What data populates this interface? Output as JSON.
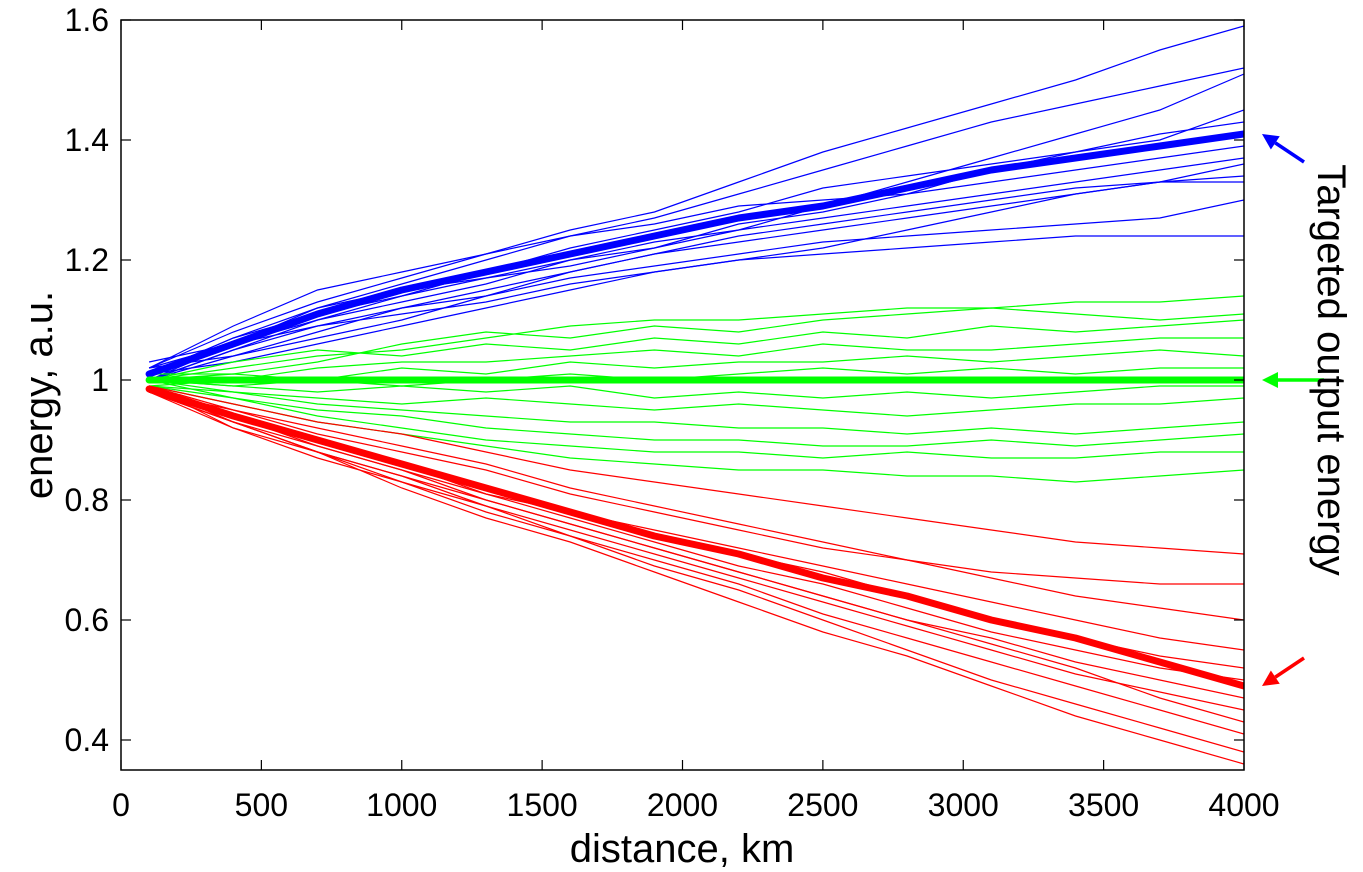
{
  "chart_data": {
    "type": "line",
    "title": "",
    "xlabel": "distance, km",
    "ylabel": "energy, a.u.",
    "xlim": [
      0,
      4000
    ],
    "ylim": [
      0.35,
      1.6
    ],
    "xticks": [
      0,
      500,
      1000,
      1500,
      2000,
      2500,
      3000,
      3500,
      4000
    ],
    "xtick_labels": [
      "0",
      "500",
      "1000",
      "1500",
      "2000",
      "2500",
      "3000",
      "3500",
      "4000"
    ],
    "yticks": [
      0.4,
      0.6,
      0.8,
      1.0,
      1.2,
      1.4,
      1.6
    ],
    "ytick_labels": [
      "0.4",
      "0.6",
      "0.8",
      "1",
      "1.2",
      "1.4",
      "1.6"
    ],
    "grid": false,
    "annotation": "Targeted output energy",
    "x": [
      100,
      400,
      700,
      1000,
      1300,
      1600,
      1900,
      2200,
      2500,
      2800,
      3100,
      3400,
      3700,
      4000
    ],
    "mean_series": [
      {
        "color": "#0000ff",
        "values": [
          1.01,
          1.06,
          1.11,
          1.15,
          1.18,
          1.21,
          1.24,
          1.27,
          1.29,
          1.32,
          1.35,
          1.37,
          1.39,
          1.41
        ]
      },
      {
        "color": "#00ff00",
        "values": [
          1.0,
          1.0,
          1.0,
          1.0,
          1.0,
          1.0,
          1.0,
          1.0,
          1.0,
          1.0,
          1.0,
          1.0,
          1.0,
          1.0
        ]
      },
      {
        "color": "#ff0000",
        "values": [
          0.985,
          0.94,
          0.9,
          0.86,
          0.82,
          0.78,
          0.74,
          0.71,
          0.67,
          0.64,
          0.6,
          0.57,
          0.53,
          0.49
        ]
      }
    ],
    "realization_groups": [
      {
        "color": "#0000ff",
        "runs": [
          [
            1.02,
            1.08,
            1.13,
            1.17,
            1.21,
            1.25,
            1.28,
            1.33,
            1.38,
            1.42,
            1.46,
            1.5,
            1.55,
            1.59
          ],
          [
            1.01,
            1.07,
            1.12,
            1.16,
            1.2,
            1.24,
            1.27,
            1.31,
            1.35,
            1.39,
            1.43,
            1.46,
            1.49,
            1.52
          ],
          [
            1.0,
            1.05,
            1.1,
            1.14,
            1.17,
            1.2,
            1.23,
            1.25,
            1.27,
            1.29,
            1.31,
            1.33,
            1.35,
            1.37
          ],
          [
            1.03,
            1.06,
            1.09,
            1.12,
            1.15,
            1.18,
            1.21,
            1.23,
            1.25,
            1.27,
            1.29,
            1.31,
            1.33,
            1.34
          ],
          [
            1.0,
            1.04,
            1.08,
            1.12,
            1.14,
            1.17,
            1.19,
            1.21,
            1.23,
            1.24,
            1.25,
            1.26,
            1.27,
            1.3
          ],
          [
            1.02,
            1.06,
            1.1,
            1.13,
            1.16,
            1.2,
            1.22,
            1.26,
            1.28,
            1.31,
            1.35,
            1.38,
            1.4,
            1.45
          ],
          [
            1.01,
            1.03,
            1.06,
            1.09,
            1.12,
            1.15,
            1.18,
            1.2,
            1.21,
            1.22,
            1.23,
            1.24,
            1.24,
            1.24
          ],
          [
            1.02,
            1.09,
            1.15,
            1.18,
            1.21,
            1.24,
            1.26,
            1.29,
            1.3,
            1.31,
            1.33,
            1.35,
            1.37,
            1.39
          ],
          [
            1.0,
            1.05,
            1.09,
            1.11,
            1.13,
            1.16,
            1.18,
            1.2,
            1.22,
            1.25,
            1.28,
            1.31,
            1.33,
            1.36
          ],
          [
            1.01,
            1.07,
            1.11,
            1.14,
            1.18,
            1.22,
            1.25,
            1.28,
            1.32,
            1.34,
            1.36,
            1.38,
            1.41,
            1.43
          ],
          [
            1.02,
            1.04,
            1.07,
            1.1,
            1.14,
            1.18,
            1.21,
            1.24,
            1.26,
            1.28,
            1.3,
            1.32,
            1.33,
            1.33
          ],
          [
            1.0,
            1.06,
            1.12,
            1.15,
            1.17,
            1.19,
            1.22,
            1.25,
            1.29,
            1.33,
            1.37,
            1.41,
            1.45,
            1.51
          ]
        ]
      },
      {
        "color": "#00ff00",
        "runs": [
          [
            1.0,
            1.02,
            1.04,
            1.05,
            1.07,
            1.09,
            1.1,
            1.1,
            1.11,
            1.12,
            1.12,
            1.13,
            1.13,
            1.14
          ],
          [
            1.01,
            1.01,
            1.03,
            1.06,
            1.08,
            1.07,
            1.09,
            1.08,
            1.1,
            1.11,
            1.12,
            1.11,
            1.1,
            1.11
          ],
          [
            1.0,
            1.03,
            1.05,
            1.04,
            1.06,
            1.05,
            1.07,
            1.06,
            1.08,
            1.07,
            1.09,
            1.08,
            1.09,
            1.1
          ],
          [
            0.99,
            1.0,
            1.02,
            1.03,
            1.03,
            1.04,
            1.05,
            1.04,
            1.06,
            1.05,
            1.05,
            1.06,
            1.07,
            1.07
          ],
          [
            1.0,
            1.01,
            1.0,
            1.02,
            1.01,
            1.03,
            1.02,
            1.03,
            1.03,
            1.04,
            1.03,
            1.04,
            1.05,
            1.04
          ],
          [
            1.0,
            0.99,
            1.0,
            0.99,
            1.0,
            1.01,
            1.0,
            1.01,
            1.02,
            1.01,
            1.02,
            1.01,
            1.02,
            1.02
          ],
          [
            1.0,
            0.99,
            0.98,
            0.99,
            0.98,
            0.99,
            0.97,
            0.98,
            0.97,
            0.98,
            0.97,
            0.98,
            0.99,
            0.99
          ],
          [
            0.99,
            0.98,
            0.97,
            0.96,
            0.97,
            0.96,
            0.95,
            0.96,
            0.95,
            0.94,
            0.95,
            0.96,
            0.96,
            0.97
          ],
          [
            1.0,
            0.98,
            0.96,
            0.95,
            0.94,
            0.93,
            0.93,
            0.92,
            0.92,
            0.91,
            0.92,
            0.91,
            0.92,
            0.93
          ],
          [
            0.99,
            0.97,
            0.95,
            0.94,
            0.92,
            0.91,
            0.9,
            0.9,
            0.89,
            0.89,
            0.9,
            0.89,
            0.9,
            0.91
          ],
          [
            1.0,
            0.97,
            0.94,
            0.92,
            0.9,
            0.89,
            0.88,
            0.88,
            0.87,
            0.88,
            0.87,
            0.87,
            0.88,
            0.88
          ],
          [
            0.99,
            0.96,
            0.93,
            0.91,
            0.89,
            0.87,
            0.86,
            0.85,
            0.85,
            0.84,
            0.84,
            0.83,
            0.84,
            0.85
          ]
        ]
      },
      {
        "color": "#ff0000",
        "runs": [
          [
            0.99,
            0.96,
            0.93,
            0.91,
            0.88,
            0.85,
            0.83,
            0.81,
            0.79,
            0.77,
            0.75,
            0.73,
            0.72,
            0.71
          ],
          [
            0.98,
            0.95,
            0.91,
            0.88,
            0.85,
            0.81,
            0.78,
            0.75,
            0.72,
            0.7,
            0.68,
            0.67,
            0.66,
            0.66
          ],
          [
            0.99,
            0.95,
            0.92,
            0.89,
            0.86,
            0.82,
            0.79,
            0.76,
            0.73,
            0.7,
            0.67,
            0.64,
            0.62,
            0.6
          ],
          [
            0.98,
            0.94,
            0.9,
            0.86,
            0.82,
            0.78,
            0.75,
            0.72,
            0.69,
            0.66,
            0.63,
            0.6,
            0.57,
            0.55
          ],
          [
            0.99,
            0.93,
            0.89,
            0.85,
            0.81,
            0.78,
            0.74,
            0.71,
            0.68,
            0.64,
            0.6,
            0.57,
            0.54,
            0.52
          ],
          [
            0.98,
            0.94,
            0.9,
            0.86,
            0.81,
            0.77,
            0.73,
            0.69,
            0.66,
            0.62,
            0.58,
            0.55,
            0.52,
            0.5
          ],
          [
            0.99,
            0.93,
            0.88,
            0.84,
            0.8,
            0.76,
            0.72,
            0.68,
            0.64,
            0.6,
            0.57,
            0.53,
            0.5,
            0.47
          ],
          [
            0.98,
            0.92,
            0.88,
            0.83,
            0.79,
            0.75,
            0.71,
            0.67,
            0.63,
            0.59,
            0.55,
            0.51,
            0.48,
            0.45
          ],
          [
            0.99,
            0.94,
            0.89,
            0.85,
            0.8,
            0.76,
            0.72,
            0.68,
            0.64,
            0.6,
            0.56,
            0.52,
            0.47,
            0.43
          ],
          [
            0.98,
            0.93,
            0.88,
            0.84,
            0.79,
            0.74,
            0.7,
            0.66,
            0.61,
            0.57,
            0.53,
            0.49,
            0.45,
            0.41
          ],
          [
            0.99,
            0.92,
            0.87,
            0.83,
            0.78,
            0.74,
            0.69,
            0.65,
            0.6,
            0.55,
            0.5,
            0.46,
            0.42,
            0.38
          ],
          [
            0.98,
            0.93,
            0.88,
            0.82,
            0.77,
            0.73,
            0.68,
            0.63,
            0.58,
            0.54,
            0.49,
            0.44,
            0.4,
            0.36
          ]
        ]
      }
    ],
    "arrows": [
      {
        "color": "#0000ff",
        "target": [
          4000,
          1.41
        ]
      },
      {
        "color": "#00ff00",
        "target": [
          4000,
          1.0
        ]
      },
      {
        "color": "#ff0000",
        "target": [
          4000,
          0.49
        ]
      }
    ]
  }
}
